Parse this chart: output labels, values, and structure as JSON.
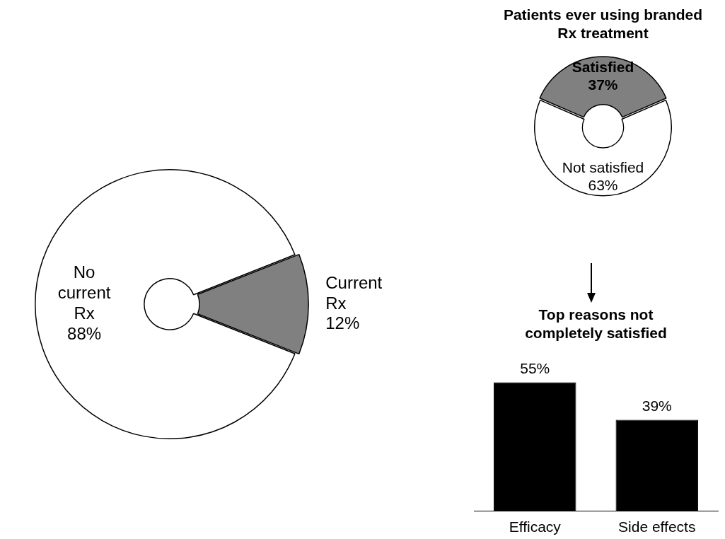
{
  "chart_data": [
    {
      "type": "donut",
      "categories": [
        "Current Rx",
        "No current Rx"
      ],
      "values": [
        12,
        88
      ],
      "colors": [
        "#808080",
        "#ffffff"
      ],
      "value_labels": [
        "12%",
        "88%"
      ],
      "legend": false
    },
    {
      "type": "donut",
      "title": "Patients ever using branded Rx treatment",
      "categories": [
        "Satisfied",
        "Not satisfied"
      ],
      "values": [
        37,
        63
      ],
      "colors": [
        "#808080",
        "#ffffff"
      ],
      "value_labels": [
        "37%",
        "63%"
      ],
      "legend": false
    },
    {
      "type": "bar",
      "title": "Top reasons not completely satisfied",
      "categories": [
        "Efficacy",
        "Side effects"
      ],
      "values": [
        55,
        39
      ],
      "color": "#000000",
      "value_labels": [
        "55%",
        "39%"
      ],
      "legend": false,
      "grid": false,
      "tick_labels": "x"
    }
  ]
}
